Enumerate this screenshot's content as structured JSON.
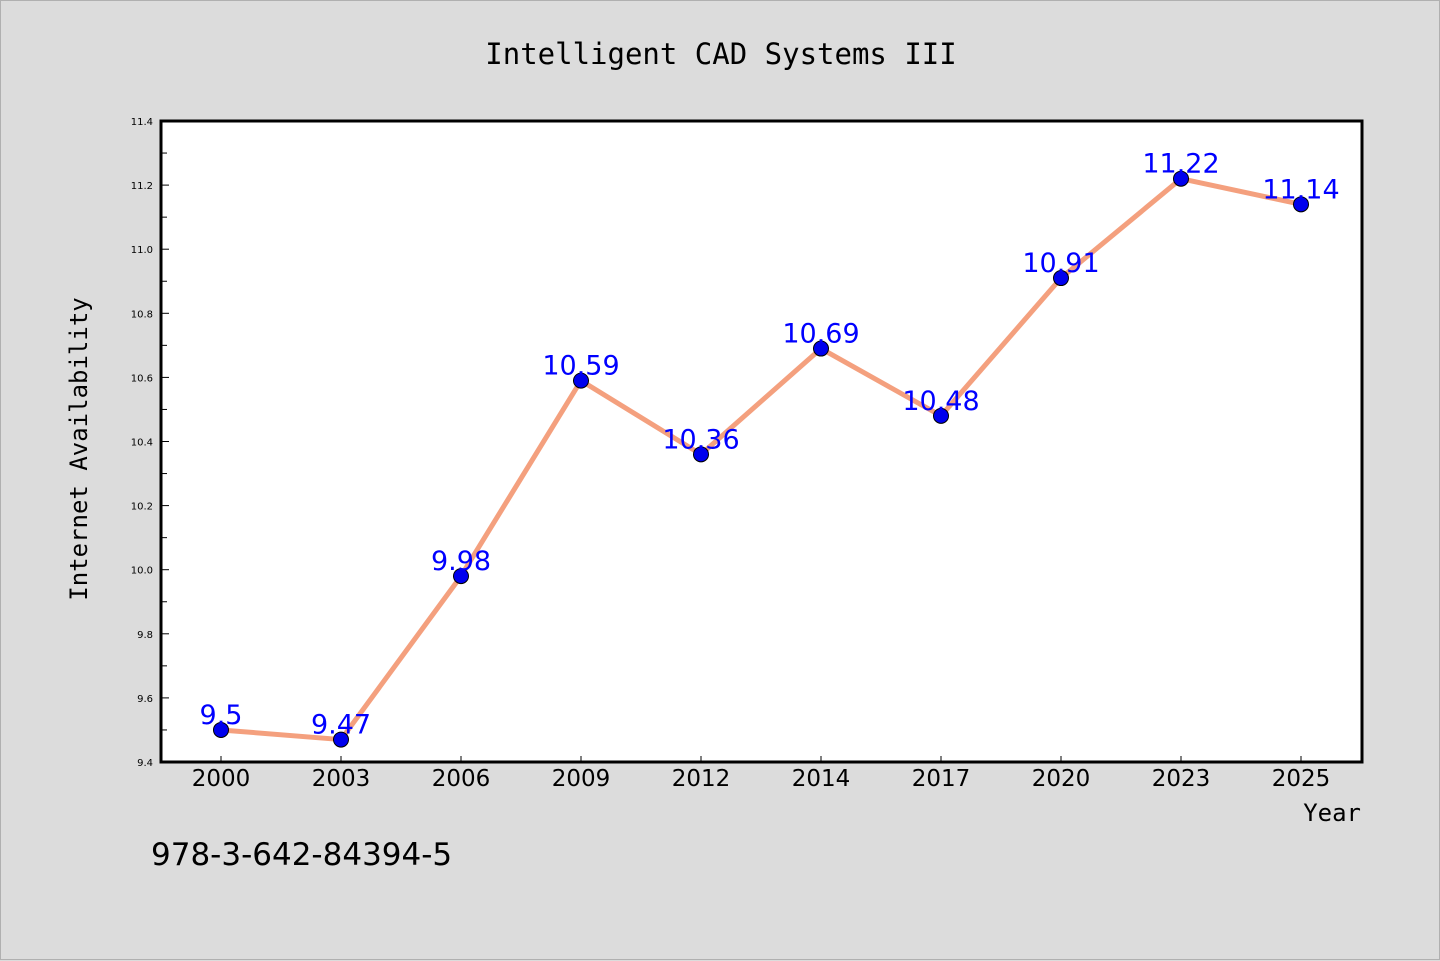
{
  "chart_data": {
    "type": "line",
    "title": "Intelligent CAD Systems III",
    "xlabel": "Year",
    "ylabel": "Internet Availability",
    "categories": [
      "2000",
      "2003",
      "2006",
      "2009",
      "2012",
      "2014",
      "2017",
      "2020",
      "2023",
      "2025"
    ],
    "series": [
      {
        "values": [
          9.5,
          9.47,
          9.98,
          10.59,
          10.36,
          10.69,
          10.48,
          10.91,
          11.22,
          11.14
        ],
        "labels": [
          "9.5",
          "9.47",
          "9.98",
          "10.59",
          "10.36",
          "10.69",
          "10.48",
          "10.91",
          "11.22",
          "11.14"
        ],
        "line_color": "#f4a07e",
        "marker_color": "#0000ee",
        "label_color": "#0000ff"
      }
    ],
    "ylim": [
      9.4,
      11.4
    ],
    "yticks": [
      "9.4",
      "9.6",
      "9.8",
      "10.0",
      "10.2",
      "10.4",
      "10.6",
      "10.8",
      "11.0",
      "11.2",
      "11.4"
    ],
    "grid": false,
    "legend": "none"
  },
  "footer_text": "978-3-642-84394-5",
  "colors": {
    "background": "#dcdcdc",
    "plot_background": "#ffffff",
    "axis": "#000000"
  }
}
